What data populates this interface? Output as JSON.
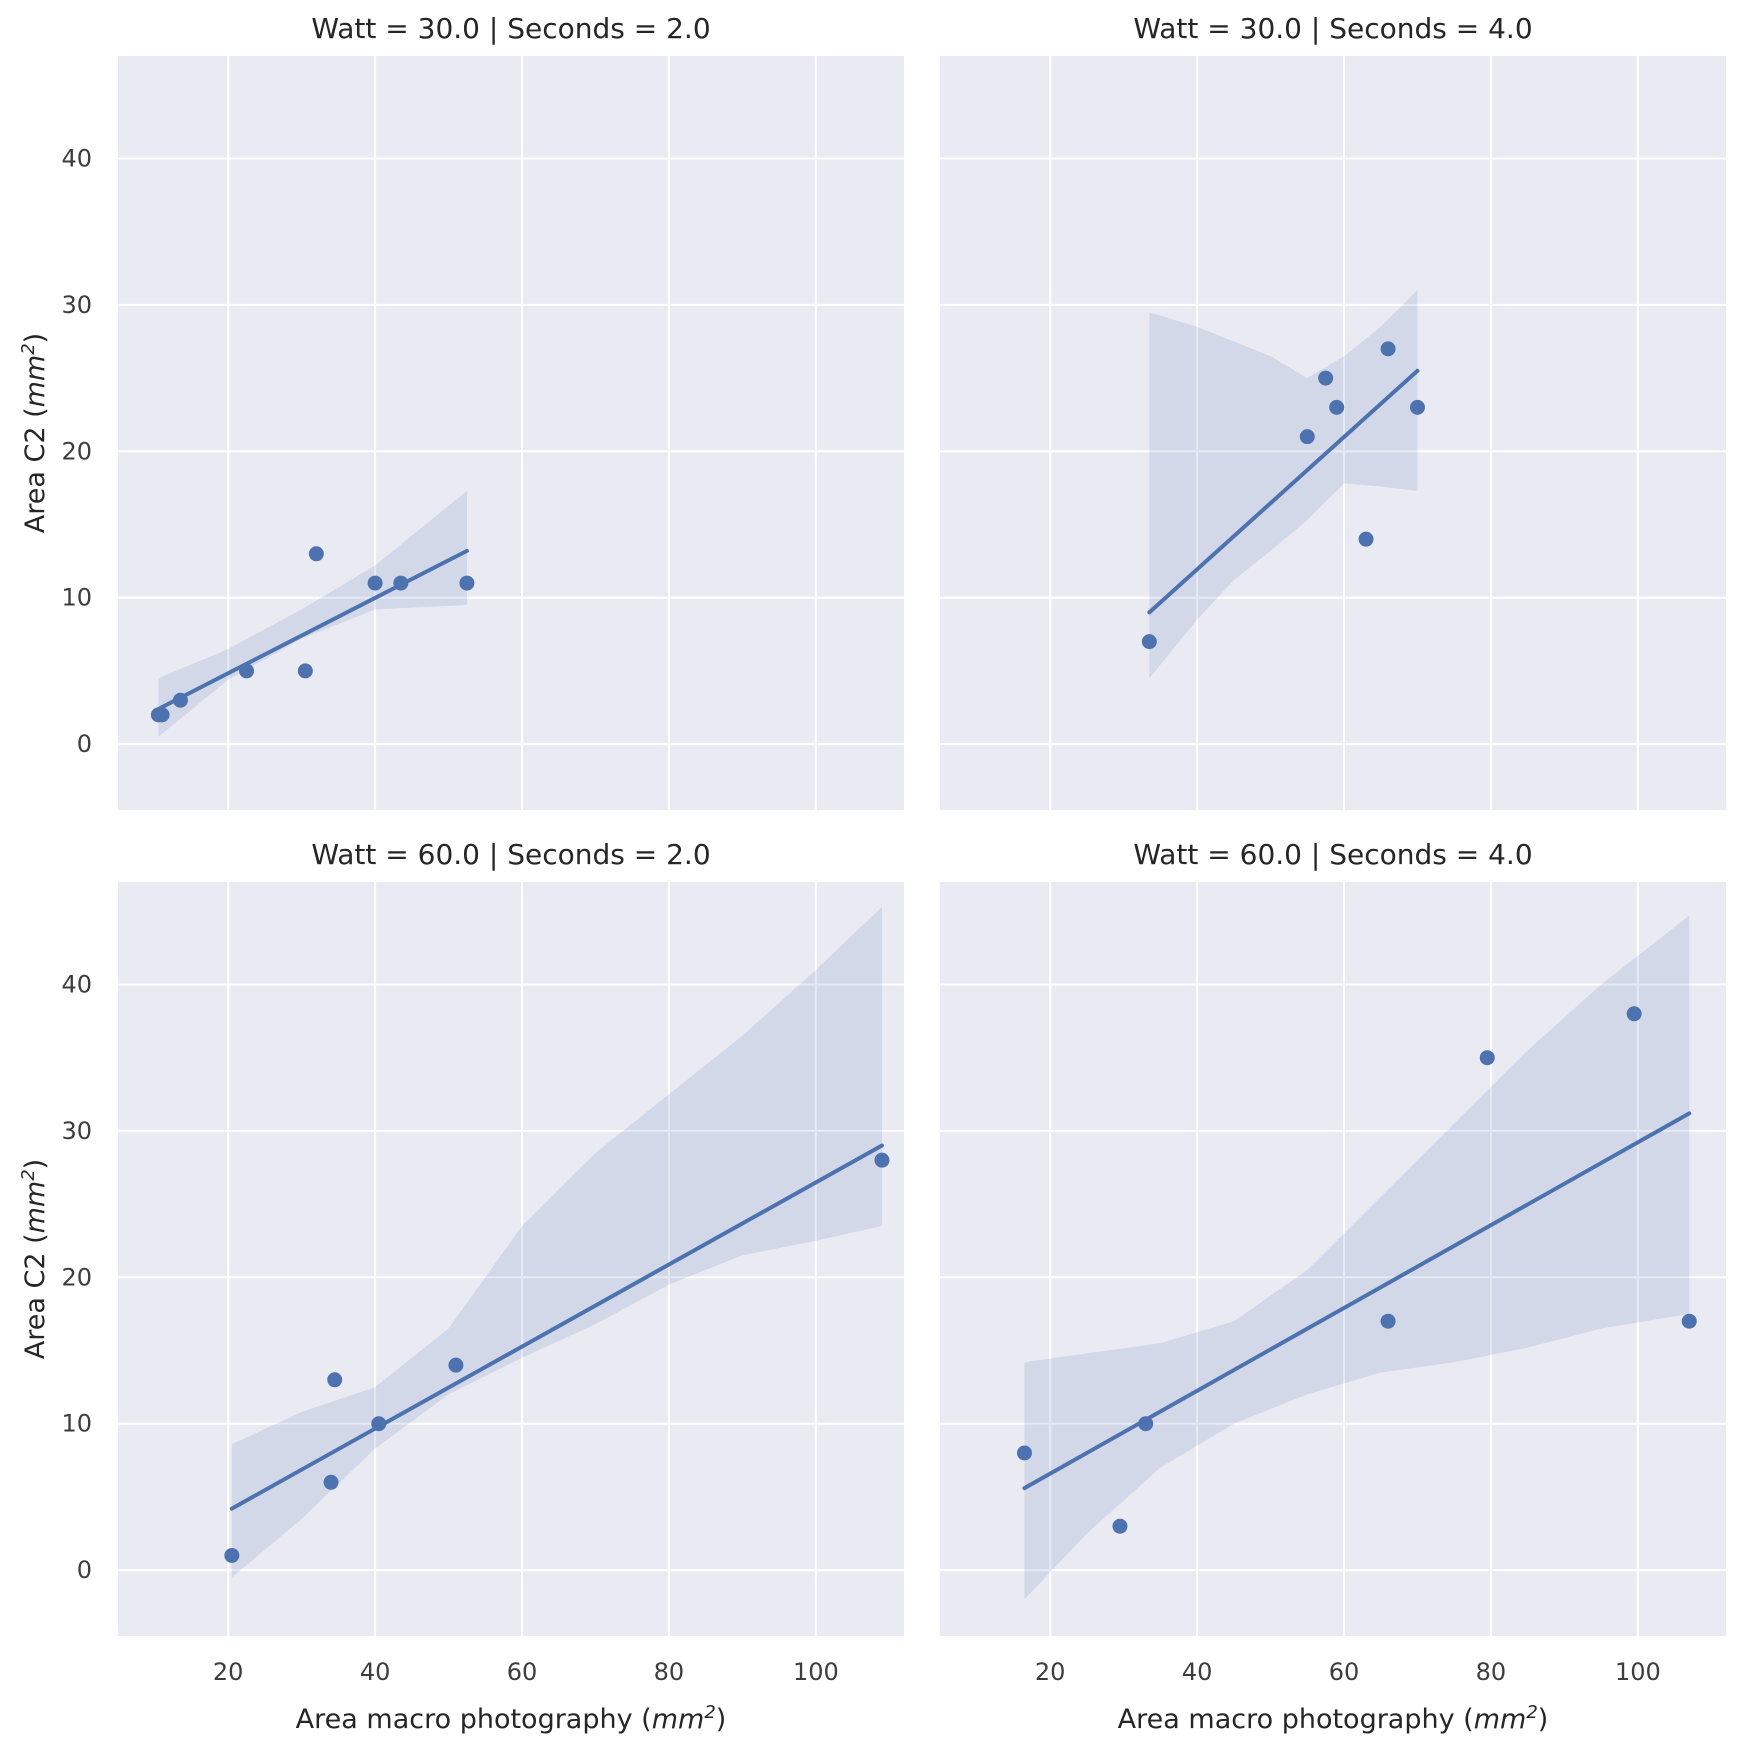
{
  "colors": {
    "panel_bg": "#EAEAF2",
    "grid": "#FFFFFF",
    "series": "#4C72B0",
    "ci_band": "#4C72B0"
  },
  "chart_data": {
    "type": "scatter",
    "layout": "2x2 facet grid with linear regression and 95% confidence band",
    "shared_axes": {
      "xlim": [
        5,
        112
      ],
      "ylim": [
        -4.5,
        47
      ],
      "xticks": [
        20,
        40,
        60,
        80,
        100
      ],
      "yticks": [
        0,
        10,
        20,
        30,
        40
      ],
      "xlabel": {
        "text": "Area macro photography (",
        "unit_base": "mm",
        "unit_exp": "2",
        "close": ")"
      },
      "ylabel": {
        "text": "Area C2 (",
        "unit_base": "mm",
        "unit_exp": "2",
        "close": ")"
      }
    },
    "facets": [
      {
        "title": "Watt = 30.0 | Seconds = 2.0",
        "points": [
          [
            10.5,
            2
          ],
          [
            11,
            2
          ],
          [
            13.5,
            3
          ],
          [
            22.5,
            5
          ],
          [
            30.5,
            5
          ],
          [
            32,
            13
          ],
          [
            40,
            11
          ],
          [
            43.5,
            11
          ],
          [
            52.5,
            11
          ]
        ],
        "fit": {
          "x": [
            10.5,
            52.5
          ],
          "y": [
            2.4,
            13.2
          ]
        },
        "ci": [
          [
            10.5,
            4.5,
            0.5
          ],
          [
            20,
            6.5,
            4.4
          ],
          [
            30,
            9.2,
            7.2
          ],
          [
            40,
            12.2,
            9.2
          ],
          [
            52.5,
            17.3,
            9.5
          ]
        ]
      },
      {
        "title": "Watt = 30.0 | Seconds = 4.0",
        "points": [
          [
            33.5,
            7
          ],
          [
            55,
            21
          ],
          [
            57.5,
            25
          ],
          [
            59,
            23
          ],
          [
            63,
            14
          ],
          [
            66,
            27
          ],
          [
            70,
            23
          ]
        ],
        "fit": {
          "x": [
            33.5,
            70
          ],
          "y": [
            9,
            25.5
          ]
        },
        "ci": [
          [
            33.5,
            29.5,
            4.5
          ],
          [
            40,
            28.5,
            8.5
          ],
          [
            45,
            27.5,
            11.2
          ],
          [
            50,
            26.5,
            13.2
          ],
          [
            55,
            25,
            15.3
          ],
          [
            60,
            26.5,
            17.8
          ],
          [
            65,
            28.5,
            17.6
          ],
          [
            70,
            31,
            17.3
          ]
        ]
      },
      {
        "title": "Watt = 60.0 | Seconds = 2.0",
        "points": [
          [
            20.5,
            1
          ],
          [
            34,
            6
          ],
          [
            34.5,
            13
          ],
          [
            40.5,
            10
          ],
          [
            51,
            14
          ],
          [
            109,
            28
          ]
        ],
        "fit": {
          "x": [
            20.5,
            109
          ],
          "y": [
            4.2,
            29
          ]
        },
        "ci": [
          [
            20.5,
            8.6,
            -0.5
          ],
          [
            30,
            10.8,
            3.5
          ],
          [
            40,
            12.5,
            8.3
          ],
          [
            50,
            16.5,
            12.0
          ],
          [
            60,
            23.5,
            14.5
          ],
          [
            70,
            28.5,
            16.8
          ],
          [
            80,
            32.5,
            19.5
          ],
          [
            90,
            36.5,
            21.5
          ],
          [
            100,
            41.0,
            22.5
          ],
          [
            109,
            45.3,
            23.5
          ]
        ]
      },
      {
        "title": "Watt = 60.0 | Seconds = 4.0",
        "points": [
          [
            16.5,
            8
          ],
          [
            29.5,
            3
          ],
          [
            33,
            10
          ],
          [
            66,
            17
          ],
          [
            79.5,
            35
          ],
          [
            99.5,
            38
          ],
          [
            107,
            17
          ]
        ],
        "fit": {
          "x": [
            16.5,
            107
          ],
          "y": [
            5.6,
            31.2
          ]
        },
        "ci": [
          [
            16.5,
            14.2,
            -2.0
          ],
          [
            25,
            14.8,
            2.5
          ],
          [
            35,
            15.5,
            7.0
          ],
          [
            45,
            17.0,
            10.0
          ],
          [
            55,
            20.5,
            12.0
          ],
          [
            65,
            25.5,
            13.5
          ],
          [
            75,
            30.5,
            14.2
          ],
          [
            85,
            35.5,
            15.2
          ],
          [
            95,
            40.0,
            16.5
          ],
          [
            107,
            44.7,
            17.5
          ]
        ]
      }
    ]
  }
}
